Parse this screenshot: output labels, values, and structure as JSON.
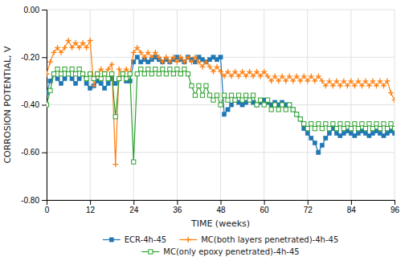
{
  "chart_data": {
    "type": "line",
    "xlabel": "TIME (weeks)",
    "ylabel": "CORROSION POTENTIAL, V",
    "x": [
      0,
      1,
      2,
      3,
      4,
      5,
      6,
      7,
      8,
      9,
      10,
      11,
      12,
      13,
      14,
      15,
      16,
      17,
      18,
      19,
      20,
      21,
      22,
      23,
      24,
      25,
      26,
      27,
      28,
      29,
      30,
      31,
      32,
      33,
      34,
      35,
      36,
      37,
      38,
      39,
      40,
      41,
      42,
      43,
      44,
      45,
      46,
      47,
      48,
      49,
      50,
      51,
      52,
      53,
      54,
      55,
      56,
      57,
      58,
      59,
      60,
      61,
      62,
      63,
      64,
      65,
      66,
      67,
      68,
      69,
      70,
      71,
      72,
      73,
      74,
      75,
      76,
      77,
      78,
      79,
      80,
      81,
      82,
      83,
      84,
      85,
      86,
      87,
      88,
      89,
      90,
      91,
      92,
      93,
      94,
      95,
      96
    ],
    "series": [
      {
        "name": "ECR-4h-45",
        "marker": "square",
        "values": [
          -0.35,
          -0.3,
          -0.27,
          -0.29,
          -0.31,
          -0.29,
          -0.27,
          -0.29,
          -0.31,
          -0.29,
          -0.27,
          -0.31,
          -0.33,
          -0.32,
          -0.3,
          -0.31,
          -0.33,
          -0.31,
          -0.29,
          -0.31,
          -0.29,
          -0.27,
          -0.3,
          -0.3,
          -0.22,
          -0.2,
          -0.22,
          -0.21,
          -0.22,
          -0.21,
          -0.2,
          -0.21,
          -0.22,
          -0.21,
          -0.22,
          -0.21,
          -0.2,
          -0.21,
          -0.22,
          -0.2,
          -0.21,
          -0.22,
          -0.2,
          -0.21,
          -0.22,
          -0.21,
          -0.2,
          -0.21,
          -0.2,
          -0.44,
          -0.42,
          -0.4,
          -0.38,
          -0.39,
          -0.4,
          -0.39,
          -0.38,
          -0.39,
          -0.4,
          -0.39,
          -0.38,
          -0.39,
          -0.4,
          -0.39,
          -0.4,
          -0.39,
          -0.4,
          -0.4,
          -0.42,
          -0.44,
          -0.46,
          -0.5,
          -0.52,
          -0.54,
          -0.56,
          -0.6,
          -0.57,
          -0.54,
          -0.52,
          -0.5,
          -0.52,
          -0.53,
          -0.52,
          -0.51,
          -0.52,
          -0.53,
          -0.52,
          -0.51,
          -0.52,
          -0.53,
          -0.52,
          -0.51,
          -0.52,
          -0.53,
          -0.52,
          -0.51,
          -0.52
        ]
      },
      {
        "name": "MC(both layers penetrated)-4h-45",
        "marker": "plus",
        "values": [
          -0.27,
          -0.22,
          -0.18,
          -0.16,
          -0.18,
          -0.16,
          -0.13,
          -0.16,
          -0.14,
          -0.16,
          -0.14,
          -0.16,
          -0.13,
          -0.32,
          -0.27,
          -0.25,
          -0.27,
          -0.25,
          -0.23,
          -0.65,
          -0.25,
          -0.27,
          -0.25,
          -0.27,
          -0.18,
          -0.16,
          -0.18,
          -0.2,
          -0.18,
          -0.2,
          -0.18,
          -0.2,
          -0.22,
          -0.2,
          -0.22,
          -0.2,
          -0.22,
          -0.2,
          -0.22,
          -0.2,
          -0.22,
          -0.2,
          -0.22,
          -0.24,
          -0.22,
          -0.24,
          -0.26,
          -0.24,
          -0.26,
          -0.28,
          -0.26,
          -0.28,
          -0.26,
          -0.28,
          -0.26,
          -0.28,
          -0.26,
          -0.28,
          -0.26,
          -0.28,
          -0.26,
          -0.28,
          -0.3,
          -0.28,
          -0.3,
          -0.28,
          -0.3,
          -0.28,
          -0.3,
          -0.28,
          -0.3,
          -0.28,
          -0.3,
          -0.28,
          -0.3,
          -0.28,
          -0.3,
          -0.32,
          -0.3,
          -0.32,
          -0.3,
          -0.32,
          -0.3,
          -0.32,
          -0.3,
          -0.32,
          -0.3,
          -0.32,
          -0.3,
          -0.32,
          -0.3,
          -0.32,
          -0.3,
          -0.32,
          -0.3,
          -0.35,
          -0.38
        ]
      },
      {
        "name": "MC(only epoxy penetrated)-4h-45",
        "marker": "square-open",
        "values": [
          -0.4,
          -0.34,
          -0.27,
          -0.25,
          -0.27,
          -0.25,
          -0.27,
          -0.25,
          -0.27,
          -0.25,
          -0.27,
          -0.29,
          -0.27,
          -0.29,
          -0.27,
          -0.29,
          -0.27,
          -0.29,
          -0.27,
          -0.45,
          -0.29,
          -0.27,
          -0.29,
          -0.27,
          -0.64,
          -0.27,
          -0.25,
          -0.27,
          -0.25,
          -0.27,
          -0.25,
          -0.27,
          -0.25,
          -0.27,
          -0.25,
          -0.27,
          -0.25,
          -0.27,
          -0.25,
          -0.27,
          -0.32,
          -0.36,
          -0.32,
          -0.36,
          -0.32,
          -0.36,
          -0.38,
          -0.36,
          -0.4,
          -0.36,
          -0.38,
          -0.36,
          -0.38,
          -0.36,
          -0.38,
          -0.36,
          -0.38,
          -0.36,
          -0.4,
          -0.38,
          -0.4,
          -0.38,
          -0.42,
          -0.4,
          -0.42,
          -0.4,
          -0.42,
          -0.4,
          -0.42,
          -0.44,
          -0.46,
          -0.48,
          -0.5,
          -0.48,
          -0.5,
          -0.48,
          -0.5,
          -0.48,
          -0.5,
          -0.48,
          -0.5,
          -0.48,
          -0.5,
          -0.48,
          -0.5,
          -0.48,
          -0.5,
          -0.48,
          -0.5,
          -0.48,
          -0.5,
          -0.48,
          -0.5,
          -0.48,
          -0.5,
          -0.48,
          -0.5
        ]
      }
    ],
    "xlim": [
      0,
      96
    ],
    "ylim": [
      -0.8,
      0.0
    ],
    "xticks": [
      0,
      12,
      24,
      36,
      48,
      60,
      72,
      84,
      96
    ],
    "yticks": [
      {
        "value": 0.0,
        "label": "0.00"
      },
      {
        "value": -0.2,
        "label": "-0.20"
      },
      {
        "value": -0.4,
        "label": "-0.40"
      },
      {
        "value": -0.6,
        "label": "-0.60"
      },
      {
        "value": -0.8,
        "label": "-0.80"
      }
    ],
    "grid": true,
    "legend": "bottom"
  }
}
